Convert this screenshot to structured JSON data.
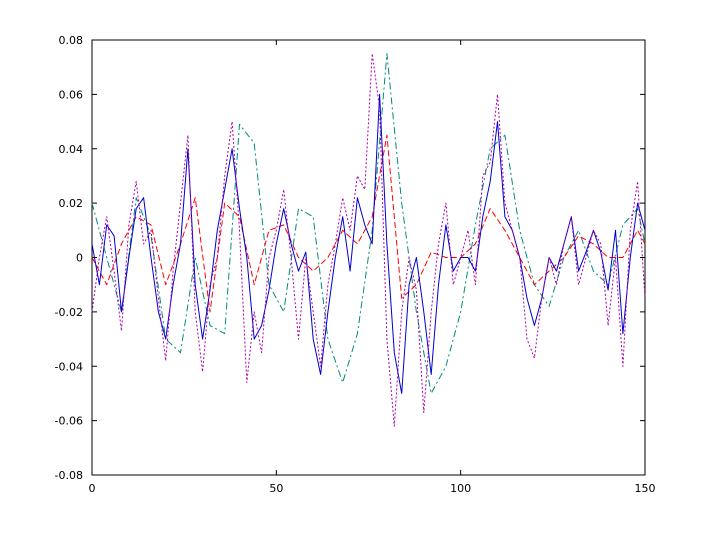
{
  "chart_data": {
    "type": "line",
    "title": "",
    "xlabel": "",
    "ylabel": "",
    "xlim": [
      0,
      150
    ],
    "ylim": [
      -0.08,
      0.08
    ],
    "xticks": [
      0,
      50,
      100,
      150
    ],
    "xtick_labels": [
      "0",
      "50",
      "100",
      "150"
    ],
    "yticks": [
      -0.08,
      -0.06,
      -0.04,
      -0.02,
      0,
      0.02,
      0.04,
      0.06,
      0.08
    ],
    "ytick_labels": [
      "-0.08",
      "-0.06",
      "-0.04",
      "-0.02",
      "0",
      "0.02",
      "0.04",
      "0.06",
      "0.08"
    ],
    "grid": false,
    "legend": "none",
    "series": [
      {
        "color": "#008b7a",
        "style": "dashdot",
        "x": [
          0,
          4,
          8,
          12,
          16,
          20,
          24,
          28,
          32,
          36,
          40,
          44,
          48,
          52,
          56,
          60,
          64,
          68,
          72,
          76,
          80,
          84,
          88,
          92,
          96,
          100,
          104,
          108,
          112,
          116,
          120,
          124,
          128,
          132,
          136,
          140,
          144,
          148,
          150
        ],
        "y": [
          0.02,
          0.0,
          -0.02,
          0.022,
          0.008,
          -0.03,
          -0.035,
          0.0,
          -0.025,
          -0.028,
          0.049,
          0.042,
          -0.01,
          -0.02,
          0.018,
          0.015,
          -0.03,
          -0.046,
          -0.028,
          0.01,
          0.075,
          0.02,
          -0.02,
          -0.05,
          -0.04,
          -0.02,
          0.012,
          0.04,
          0.045,
          0.01,
          -0.01,
          -0.018,
          0.0,
          0.01,
          -0.005,
          -0.01,
          0.012,
          0.018,
          0.005
        ]
      },
      {
        "color": "#ff0000",
        "style": "dashed",
        "x": [
          0,
          4,
          8,
          12,
          16,
          20,
          24,
          28,
          32,
          36,
          40,
          44,
          48,
          52,
          56,
          60,
          64,
          68,
          72,
          76,
          80,
          84,
          88,
          92,
          96,
          100,
          104,
          108,
          112,
          116,
          120,
          124,
          128,
          132,
          136,
          140,
          144,
          148,
          150
        ],
        "y": [
          0.0,
          -0.01,
          0.005,
          0.015,
          0.012,
          -0.01,
          0.005,
          0.022,
          -0.02,
          0.02,
          0.015,
          -0.01,
          0.01,
          0.012,
          0.0,
          -0.005,
          0.0,
          0.01,
          0.005,
          0.015,
          0.045,
          -0.015,
          -0.01,
          0.002,
          0.0,
          0.0,
          0.005,
          0.018,
          0.01,
          0.0,
          -0.01,
          -0.005,
          0.0,
          0.008,
          0.005,
          0.0,
          0.0,
          0.01,
          0.005
        ]
      },
      {
        "color": "#0000cc",
        "style": "solid",
        "x": [
          0,
          2,
          4,
          6,
          8,
          10,
          12,
          14,
          16,
          18,
          20,
          22,
          24,
          26,
          28,
          30,
          32,
          34,
          36,
          38,
          40,
          42,
          44,
          46,
          48,
          50,
          52,
          54,
          56,
          58,
          60,
          62,
          64,
          66,
          68,
          70,
          72,
          74,
          76,
          78,
          80,
          82,
          84,
          86,
          88,
          90,
          92,
          94,
          96,
          98,
          100,
          102,
          104,
          106,
          108,
          110,
          112,
          114,
          116,
          118,
          120,
          122,
          124,
          126,
          128,
          130,
          132,
          134,
          136,
          138,
          140,
          142,
          144,
          146,
          148,
          150
        ],
        "y": [
          0.005,
          -0.01,
          0.012,
          0.008,
          -0.02,
          0.0,
          0.018,
          0.022,
          0.0,
          -0.02,
          -0.03,
          -0.01,
          0.005,
          0.04,
          -0.01,
          -0.03,
          -0.012,
          0.01,
          0.025,
          0.04,
          0.018,
          0.0,
          -0.03,
          -0.025,
          -0.012,
          0.005,
          0.018,
          0.005,
          -0.005,
          0.002,
          -0.03,
          -0.043,
          -0.02,
          0.0,
          0.015,
          -0.005,
          0.022,
          0.012,
          0.005,
          0.06,
          0.005,
          -0.035,
          -0.05,
          -0.01,
          0.0,
          -0.02,
          -0.043,
          -0.01,
          0.012,
          -0.005,
          0.0,
          0.0,
          -0.005,
          0.015,
          0.028,
          0.05,
          0.015,
          0.01,
          0.0,
          -0.015,
          -0.025,
          -0.015,
          0.0,
          -0.005,
          0.005,
          0.015,
          -0.005,
          0.002,
          0.01,
          0.002,
          -0.012,
          0.01,
          -0.028,
          0.0,
          0.02,
          0.01
        ]
      },
      {
        "color": "#aa00aa",
        "style": "dotted",
        "x": [
          0,
          2,
          4,
          6,
          8,
          10,
          12,
          14,
          16,
          18,
          20,
          22,
          24,
          26,
          28,
          30,
          32,
          34,
          36,
          38,
          40,
          42,
          44,
          46,
          48,
          50,
          52,
          54,
          56,
          58,
          60,
          62,
          64,
          66,
          68,
          70,
          72,
          74,
          76,
          78,
          80,
          82,
          84,
          86,
          88,
          90,
          92,
          94,
          96,
          98,
          100,
          102,
          104,
          106,
          108,
          110,
          112,
          114,
          116,
          118,
          120,
          122,
          124,
          126,
          128,
          130,
          132,
          134,
          136,
          138,
          140,
          142,
          144,
          146,
          148,
          150
        ],
        "y": [
          -0.02,
          0.0,
          0.015,
          -0.005,
          -0.027,
          0.012,
          0.028,
          0.005,
          0.01,
          -0.015,
          -0.038,
          -0.005,
          0.02,
          0.045,
          -0.02,
          -0.042,
          -0.01,
          0.0,
          0.03,
          0.05,
          0.01,
          -0.046,
          -0.02,
          -0.035,
          0.0,
          0.01,
          0.025,
          0.0,
          -0.03,
          0.0,
          -0.02,
          -0.04,
          -0.01,
          0.005,
          0.022,
          0.01,
          0.03,
          0.025,
          0.075,
          0.055,
          -0.03,
          -0.062,
          -0.02,
          0.0,
          -0.012,
          -0.057,
          -0.02,
          0.005,
          0.02,
          -0.01,
          0.0,
          0.01,
          -0.01,
          0.03,
          0.035,
          0.06,
          0.02,
          0.01,
          0.0,
          -0.03,
          -0.037,
          -0.015,
          0.0,
          -0.01,
          0.005,
          0.015,
          -0.01,
          0.0,
          0.01,
          0.005,
          -0.025,
          0.0,
          -0.04,
          0.01,
          0.028,
          -0.015
        ]
      }
    ]
  }
}
